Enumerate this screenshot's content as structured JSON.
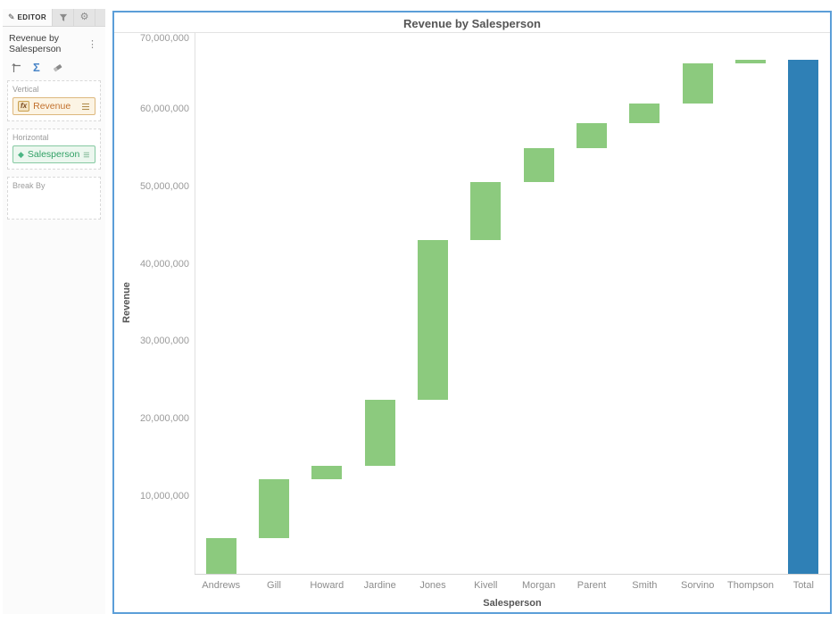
{
  "icons": {
    "pencil": "✎",
    "gear": "⚙",
    "menu": "⋮",
    "sigma": "Σ",
    "fx": "fx",
    "diamond": "◆"
  },
  "sidebar": {
    "tabs": [
      {
        "label": "EDITOR",
        "icon": "pencil-icon"
      },
      {
        "icon": "filter-icon"
      },
      {
        "icon": "gear-icon"
      }
    ],
    "title": "Revenue by Salesperson",
    "zones": [
      {
        "label": "Vertical",
        "field": {
          "name": "Revenue",
          "kind": "metric"
        }
      },
      {
        "label": "Horizontal",
        "field": {
          "name": "Salesperson",
          "kind": "attribute"
        }
      },
      {
        "label": "Break By",
        "field": null
      }
    ]
  },
  "chart_data": {
    "type": "bar",
    "subtype": "waterfall",
    "title": "Revenue by Salesperson",
    "xlabel": "Salesperson",
    "ylabel": "Revenue",
    "categories": [
      "Andrews",
      "Gill",
      "Howard",
      "Jardine",
      "Jones",
      "Kivell",
      "Morgan",
      "Parent",
      "Smith",
      "Sorvino",
      "Thompson",
      "Total"
    ],
    "increments": [
      4600000,
      7600000,
      1750000,
      8500000,
      20700000,
      7500000,
      4400000,
      3200000,
      2500000,
      5200000,
      500000
    ],
    "total": 66450000,
    "ylim": [
      0,
      70000000
    ],
    "yticks": [
      {
        "value": 10000000,
        "label": "10,000,000"
      },
      {
        "value": 20000000,
        "label": "20,000,000"
      },
      {
        "value": 30000000,
        "label": "30,000,000"
      },
      {
        "value": 40000000,
        "label": "40,000,000"
      },
      {
        "value": 50000000,
        "label": "50,000,000"
      },
      {
        "value": 60000000,
        "label": "60,000,000"
      },
      {
        "value": 70000000,
        "label": "70,000,000"
      }
    ],
    "grid": "top line only",
    "legend": "none",
    "colors": {
      "increment": "#8cca7e",
      "total": "#2f80b6"
    }
  }
}
